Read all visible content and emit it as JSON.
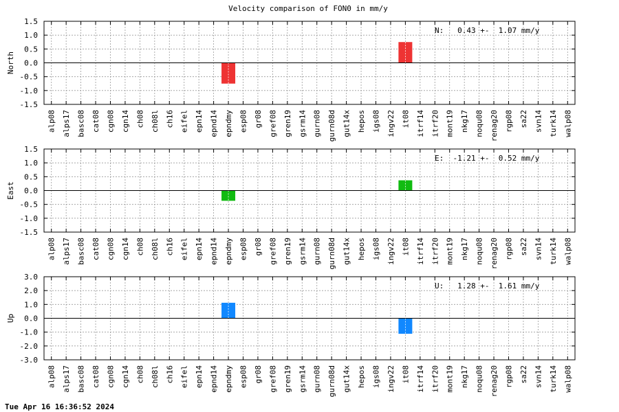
{
  "chart_data": {
    "type": "bar",
    "title": "Velocity comparison of FON0 in mm/y",
    "categories": [
      "alp08",
      "alps17",
      "basc08",
      "cat08",
      "cgn08",
      "cgn14",
      "ch08",
      "ch08l",
      "ch16",
      "eifel",
      "epn14",
      "epnd14",
      "epndmy",
      "esp08",
      "gr08",
      "gref08",
      "gren19",
      "gsrm14",
      "gurn08",
      "gurn08d",
      "gut14x",
      "hepos",
      "igs08",
      "ingv22",
      "it08",
      "itrf14",
      "itrf20",
      "mont19",
      "nkg17",
      "noqu08",
      "renag20",
      "rgp08",
      "sa22",
      "svn14",
      "turk14",
      "walp08"
    ],
    "grid": true,
    "panels": [
      {
        "ylabel": "North",
        "ylim": [
          -1.5,
          1.5
        ],
        "yticks": [
          "1.5",
          "1.0",
          "0.5",
          "0.0",
          "-0.5",
          "-1.0",
          "-1.5"
        ],
        "tick_values": [
          1.5,
          1.0,
          0.5,
          0.0,
          -0.5,
          -1.0,
          -1.5
        ],
        "color": "#ee3333",
        "annotation": "N:   0.43 +-  1.07 mm/y",
        "bars": [
          {
            "category": "epndmy",
            "value": -0.75
          },
          {
            "category": "it08",
            "value": 0.75
          }
        ]
      },
      {
        "ylabel": "East",
        "ylim": [
          -1.5,
          1.5
        ],
        "yticks": [
          "1.5",
          "1.0",
          "0.5",
          "0.0",
          "-0.5",
          "-1.0",
          "-1.5"
        ],
        "tick_values": [
          1.5,
          1.0,
          0.5,
          0.0,
          -0.5,
          -1.0,
          -1.5
        ],
        "color": "#11bb11",
        "annotation": "E:  -1.21 +-  0.52 mm/y",
        "bars": [
          {
            "category": "epndmy",
            "value": -0.37
          },
          {
            "category": "it08",
            "value": 0.37
          }
        ]
      },
      {
        "ylabel": "Up",
        "ylim": [
          -3.0,
          3.0
        ],
        "yticks": [
          "3.0",
          "2.0",
          "1.0",
          "0.0",
          "-1.0",
          "-2.0",
          "-3.0"
        ],
        "tick_values": [
          3.0,
          2.0,
          1.0,
          0.0,
          -1.0,
          -2.0,
          -3.0
        ],
        "color": "#1188ff",
        "annotation": "U:   1.28 +-  1.61 mm/y",
        "bars": [
          {
            "category": "epndmy",
            "value": 1.12
          },
          {
            "category": "it08",
            "value": -1.12
          }
        ]
      }
    ]
  },
  "footer": "Tue Apr 16 16:36:52 2024"
}
